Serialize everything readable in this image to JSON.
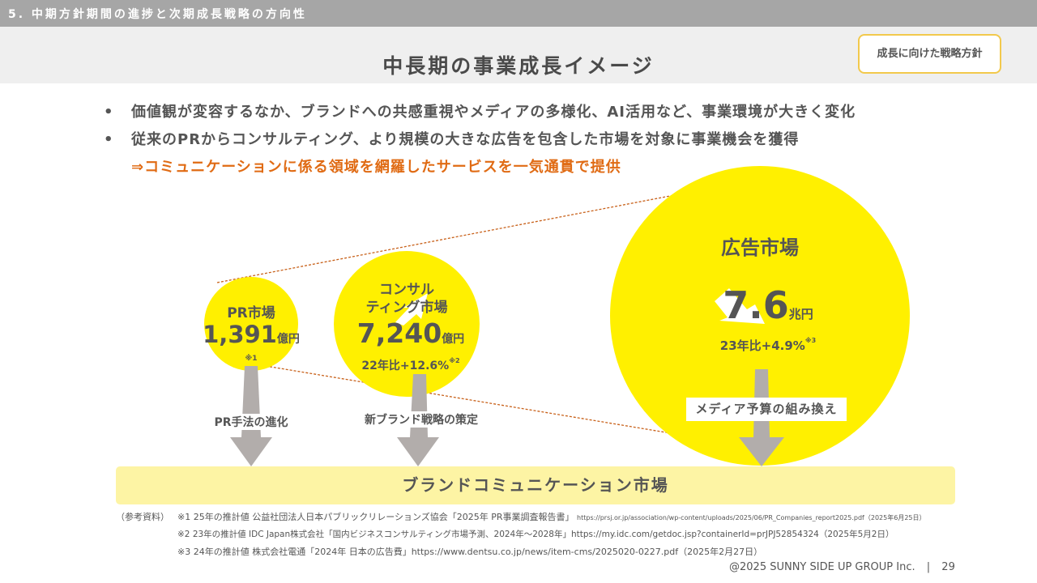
{
  "header": {
    "section_title": "5. 中期方針期間の進捗と次期成長戦略の方向性",
    "slide_title": "中長期の事業成長イメージ",
    "tag": "成長に向けた戦略方針"
  },
  "bullets": [
    "価値観が変容するなか、ブランドへの共感重視やメディアの多様化、AI活用など、事業環境が大きく変化",
    "従来のPRからコンサルティング、より規模の大きな広告を包含した市場を対象に事業機会を獲得"
  ],
  "bullet_marker": "•",
  "highlight": "⇒コミュニケーションに係る領域を網羅したサービスを一気通貫で提供",
  "markets": {
    "pr": {
      "name": "PR市場",
      "value": "1,391",
      "unit": "億円",
      "note": "※1"
    },
    "consulting": {
      "name_line1": "コンサル",
      "name_line2": "ティング市場",
      "value": "7,240",
      "unit": "億円",
      "growth": "22年比+12.6%",
      "note": "※2"
    },
    "ad": {
      "name": "広告市場",
      "value": "7.6",
      "unit": "兆円",
      "growth": "23年比+4.9%",
      "note": "※3"
    }
  },
  "arrows": {
    "pr_label": "PR手法の進化",
    "consulting_label": "新ブランド戦略の策定",
    "ad_label": "メディア予算の組み換え"
  },
  "target_market": "ブランドコミュニケーション市場",
  "references": {
    "prefix": "（参考資料）",
    "ref1_main": "※1  25年の推計値  公益社団法人日本パブリックリレーションズ協会「2025年 PR事業調査報告書」",
    "ref1_url": "https://prsj.or.jp/association/wp-content/uploads/2025/06/PR_Companies_report2025.pdf（2025年6月25日）",
    "ref2": "※2  23年の推計値  IDC Japan株式会社「国内ビジネスコンサルティング市場予測、2024年～2028年」https://my.idc.com/getdoc.jsp?containerId=prJPJ52854324（2025年5月2日）",
    "ref3": "※3  24年の推計値  株式会社電通「2024年 日本の広告費」https://www.dentsu.co.jp/news/item-cms/2025020-0227.pdf（2025年2月27日）"
  },
  "footer": {
    "copyright": "@2025 SUNNY SIDE UP GROUP Inc.",
    "separator": "|",
    "page": "29"
  },
  "colors": {
    "circle": "#fff000",
    "arrow": "#b2adab",
    "highlight": "#e06b14",
    "band": "#fdf4a4",
    "topbar": "#a6a6a6"
  }
}
